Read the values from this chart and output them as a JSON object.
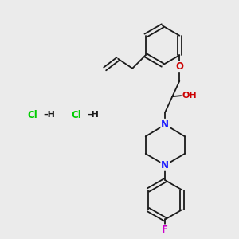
{
  "background_color": "#ebebeb",
  "fig_size": [
    3.0,
    3.0
  ],
  "dpi": 100,
  "bond_color": "#1a1a1a",
  "bond_lw": 1.3,
  "N_color": "#1a1aff",
  "O_color": "#cc0000",
  "F_color": "#cc00cc",
  "Cl_color": "#00cc00",
  "font_size_atom": 8.5,
  "font_size_hcl": 8.0,
  "xlim": [
    0,
    10
  ],
  "ylim": [
    0,
    10
  ]
}
